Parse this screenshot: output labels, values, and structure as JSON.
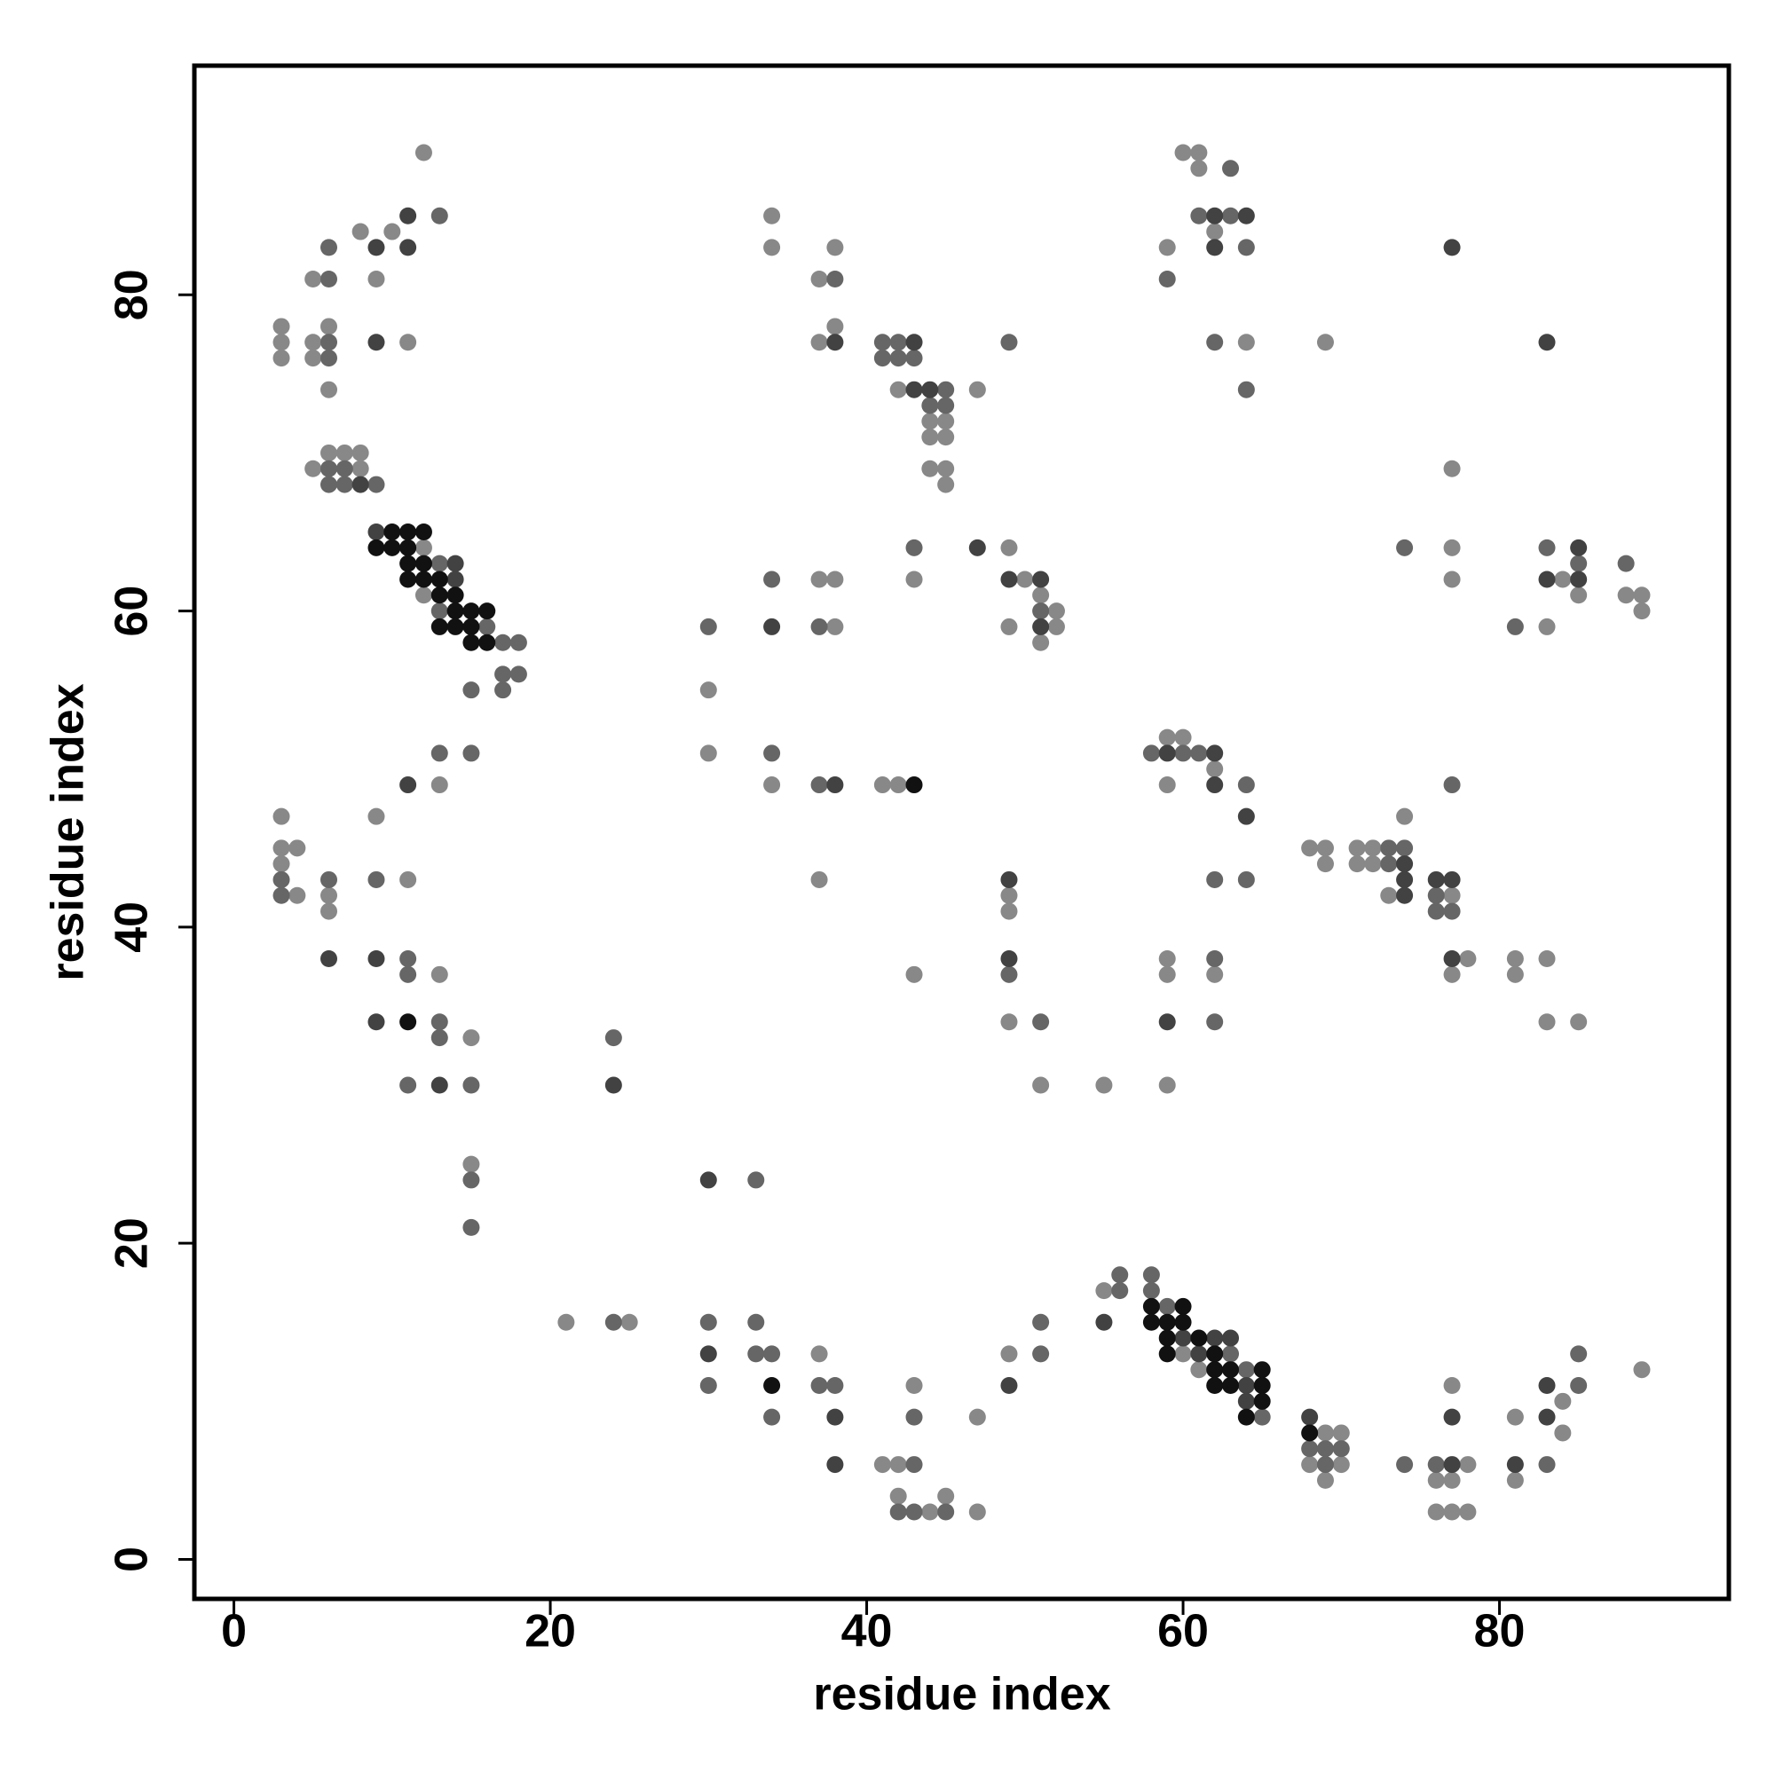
{
  "chart_data": {
    "type": "scatter",
    "xlabel": "residue index",
    "ylabel": "residue index",
    "xlim": [
      -2.5,
      94.5
    ],
    "ylim": [
      -2.5,
      94.5
    ],
    "xticks": [
      0,
      20,
      40,
      60,
      80
    ],
    "yticks": [
      0,
      20,
      40,
      60,
      80
    ],
    "grid": false,
    "series": [
      {
        "color": "#888888",
        "x": [
          12,
          8,
          10,
          5,
          9,
          3,
          6,
          3,
          5,
          11,
          3,
          5,
          6,
          5,
          6,
          7,
          8,
          8,
          12,
          12,
          13,
          3,
          9,
          3,
          4,
          3,
          11,
          4,
          6,
          6,
          13,
          15,
          15,
          34,
          34,
          38,
          37,
          38,
          37,
          42,
          44,
          45,
          44,
          45,
          44,
          45,
          45,
          47,
          49,
          43,
          50,
          51,
          52,
          52,
          49,
          51,
          37,
          38,
          38,
          30,
          30,
          34,
          41,
          42,
          37,
          49,
          49,
          43,
          49,
          51,
          55,
          59,
          60,
          61,
          61,
          62,
          59,
          64,
          69,
          77,
          77,
          77,
          84,
          85,
          83,
          88,
          89,
          89,
          59,
          60,
          62,
          59,
          74,
          68,
          69,
          71,
          72,
          69,
          71,
          72,
          73,
          77,
          59,
          59,
          62,
          78,
          81,
          83,
          77,
          81,
          83,
          85,
          21,
          25,
          37,
          41,
          42,
          42,
          44,
          45,
          47,
          43,
          47,
          49,
          55,
          60,
          61,
          69,
          70,
          68,
          70,
          69,
          78,
          76,
          77,
          76,
          77,
          78,
          77,
          81,
          81,
          84,
          84,
          89
        ],
        "y": [
          89,
          84,
          84,
          81,
          81,
          78,
          78,
          77,
          77,
          77,
          76,
          76,
          74,
          69,
          70,
          70,
          70,
          69,
          64,
          61,
          49,
          47,
          47,
          45,
          45,
          44,
          43,
          42,
          42,
          41,
          37,
          33,
          25,
          85,
          83,
          83,
          81,
          78,
          77,
          74,
          72,
          72,
          71,
          71,
          69,
          69,
          68,
          74,
          64,
          62,
          62,
          61,
          60,
          59,
          59,
          58,
          62,
          62,
          59,
          55,
          51,
          49,
          49,
          49,
          43,
          42,
          41,
          37,
          34,
          30,
          30,
          30,
          89,
          89,
          88,
          84,
          83,
          77,
          77,
          69,
          64,
          62,
          62,
          61,
          59,
          61,
          61,
          60,
          52,
          52,
          50,
          49,
          47,
          45,
          45,
          45,
          45,
          44,
          44,
          44,
          42,
          42,
          38,
          37,
          37,
          38,
          38,
          38,
          37,
          37,
          34,
          34,
          15,
          15,
          13,
          6,
          6,
          4,
          3,
          4,
          3,
          11,
          9,
          13,
          17,
          13,
          12,
          8,
          8,
          6,
          6,
          5,
          6,
          5,
          5,
          3,
          3,
          3,
          11,
          9,
          5,
          10,
          8,
          12
        ]
      },
      {
        "color": "#666666",
        "x": [
          13,
          6,
          6,
          6,
          6,
          6,
          7,
          6,
          7,
          9,
          13,
          13,
          16,
          17,
          18,
          17,
          18,
          15,
          17,
          13,
          15,
          3,
          6,
          9,
          3,
          11,
          11,
          13,
          13,
          11,
          15,
          15,
          15,
          24,
          38,
          41,
          42,
          41,
          42,
          43,
          45,
          44,
          45,
          49,
          43,
          51,
          34,
          30,
          37,
          34,
          37,
          49,
          51,
          33,
          63,
          61,
          63,
          64,
          59,
          62,
          64,
          74,
          83,
          85,
          81,
          88,
          58,
          60,
          61,
          64,
          73,
          74,
          73,
          76,
          76,
          77,
          77,
          62,
          64,
          62,
          62,
          24,
          30,
          33,
          33,
          34,
          30,
          37,
          38,
          34,
          43,
          42,
          43,
          45,
          43,
          51,
          51,
          56,
          56,
          58,
          58,
          59,
          63,
          64,
          65,
          68,
          69,
          70,
          69,
          74,
          76,
          83,
          85,
          85
        ],
        "y": [
          85,
          83,
          81,
          77,
          76,
          69,
          69,
          68,
          68,
          68,
          63,
          60,
          59,
          58,
          58,
          56,
          56,
          55,
          55,
          51,
          51,
          43,
          43,
          43,
          42,
          38,
          37,
          34,
          33,
          30,
          30,
          24,
          21,
          33,
          81,
          77,
          77,
          76,
          76,
          76,
          74,
          73,
          73,
          77,
          64,
          60,
          62,
          59,
          59,
          51,
          49,
          37,
          34,
          24,
          88,
          85,
          85,
          83,
          81,
          77,
          74,
          64,
          64,
          63,
          59,
          63,
          51,
          51,
          51,
          49,
          45,
          45,
          44,
          42,
          41,
          41,
          49,
          43,
          43,
          38,
          34,
          15,
          15,
          15,
          13,
          13,
          11,
          11,
          11,
          9,
          6,
          3,
          3,
          3,
          9,
          15,
          13,
          17,
          18,
          18,
          17,
          16,
          13,
          12,
          9,
          7,
          7,
          7,
          6,
          6,
          6,
          6,
          13,
          11
        ]
      },
      {
        "color": "#424242",
        "x": [
          11,
          9,
          11,
          9,
          8,
          9,
          14,
          14,
          11,
          6,
          9,
          9,
          13,
          24,
          38,
          43,
          43,
          44,
          47,
          49,
          51,
          51,
          34,
          38,
          49,
          49,
          30,
          62,
          64,
          62,
          77,
          83,
          85,
          83,
          85,
          59,
          62,
          62,
          64,
          74,
          74,
          76,
          77,
          74,
          77,
          59,
          30,
          38,
          38,
          49,
          55,
          60,
          62,
          63,
          61,
          64,
          64,
          68,
          77,
          77,
          81,
          83,
          83
        ],
        "y": [
          85,
          83,
          83,
          77,
          68,
          65,
          63,
          62,
          49,
          38,
          38,
          34,
          30,
          30,
          77,
          77,
          74,
          74,
          64,
          62,
          62,
          59,
          59,
          49,
          43,
          38,
          24,
          85,
          85,
          83,
          83,
          77,
          64,
          62,
          62,
          51,
          51,
          49,
          47,
          44,
          43,
          43,
          43,
          42,
          38,
          34,
          13,
          9,
          6,
          11,
          15,
          14,
          14,
          14,
          13,
          11,
          10,
          9,
          6,
          9,
          6,
          11,
          9
        ]
      },
      {
        "color": "#111111",
        "x": [
          10,
          11,
          12,
          9,
          10,
          11,
          11,
          12,
          11,
          12,
          13,
          13,
          14,
          14,
          15,
          16,
          13,
          14,
          15,
          15,
          16,
          11,
          43,
          34,
          58,
          60,
          58,
          59,
          60,
          59,
          61,
          59,
          62,
          62,
          63,
          65,
          62,
          63,
          65,
          65,
          64,
          68
        ],
        "y": [
          65,
          65,
          65,
          64,
          64,
          64,
          63,
          63,
          62,
          62,
          62,
          61,
          61,
          60,
          60,
          60,
          59,
          59,
          59,
          58,
          58,
          34,
          49,
          11,
          16,
          16,
          15,
          15,
          15,
          14,
          14,
          13,
          13,
          12,
          12,
          12,
          11,
          11,
          11,
          10,
          9,
          8
        ]
      }
    ]
  }
}
